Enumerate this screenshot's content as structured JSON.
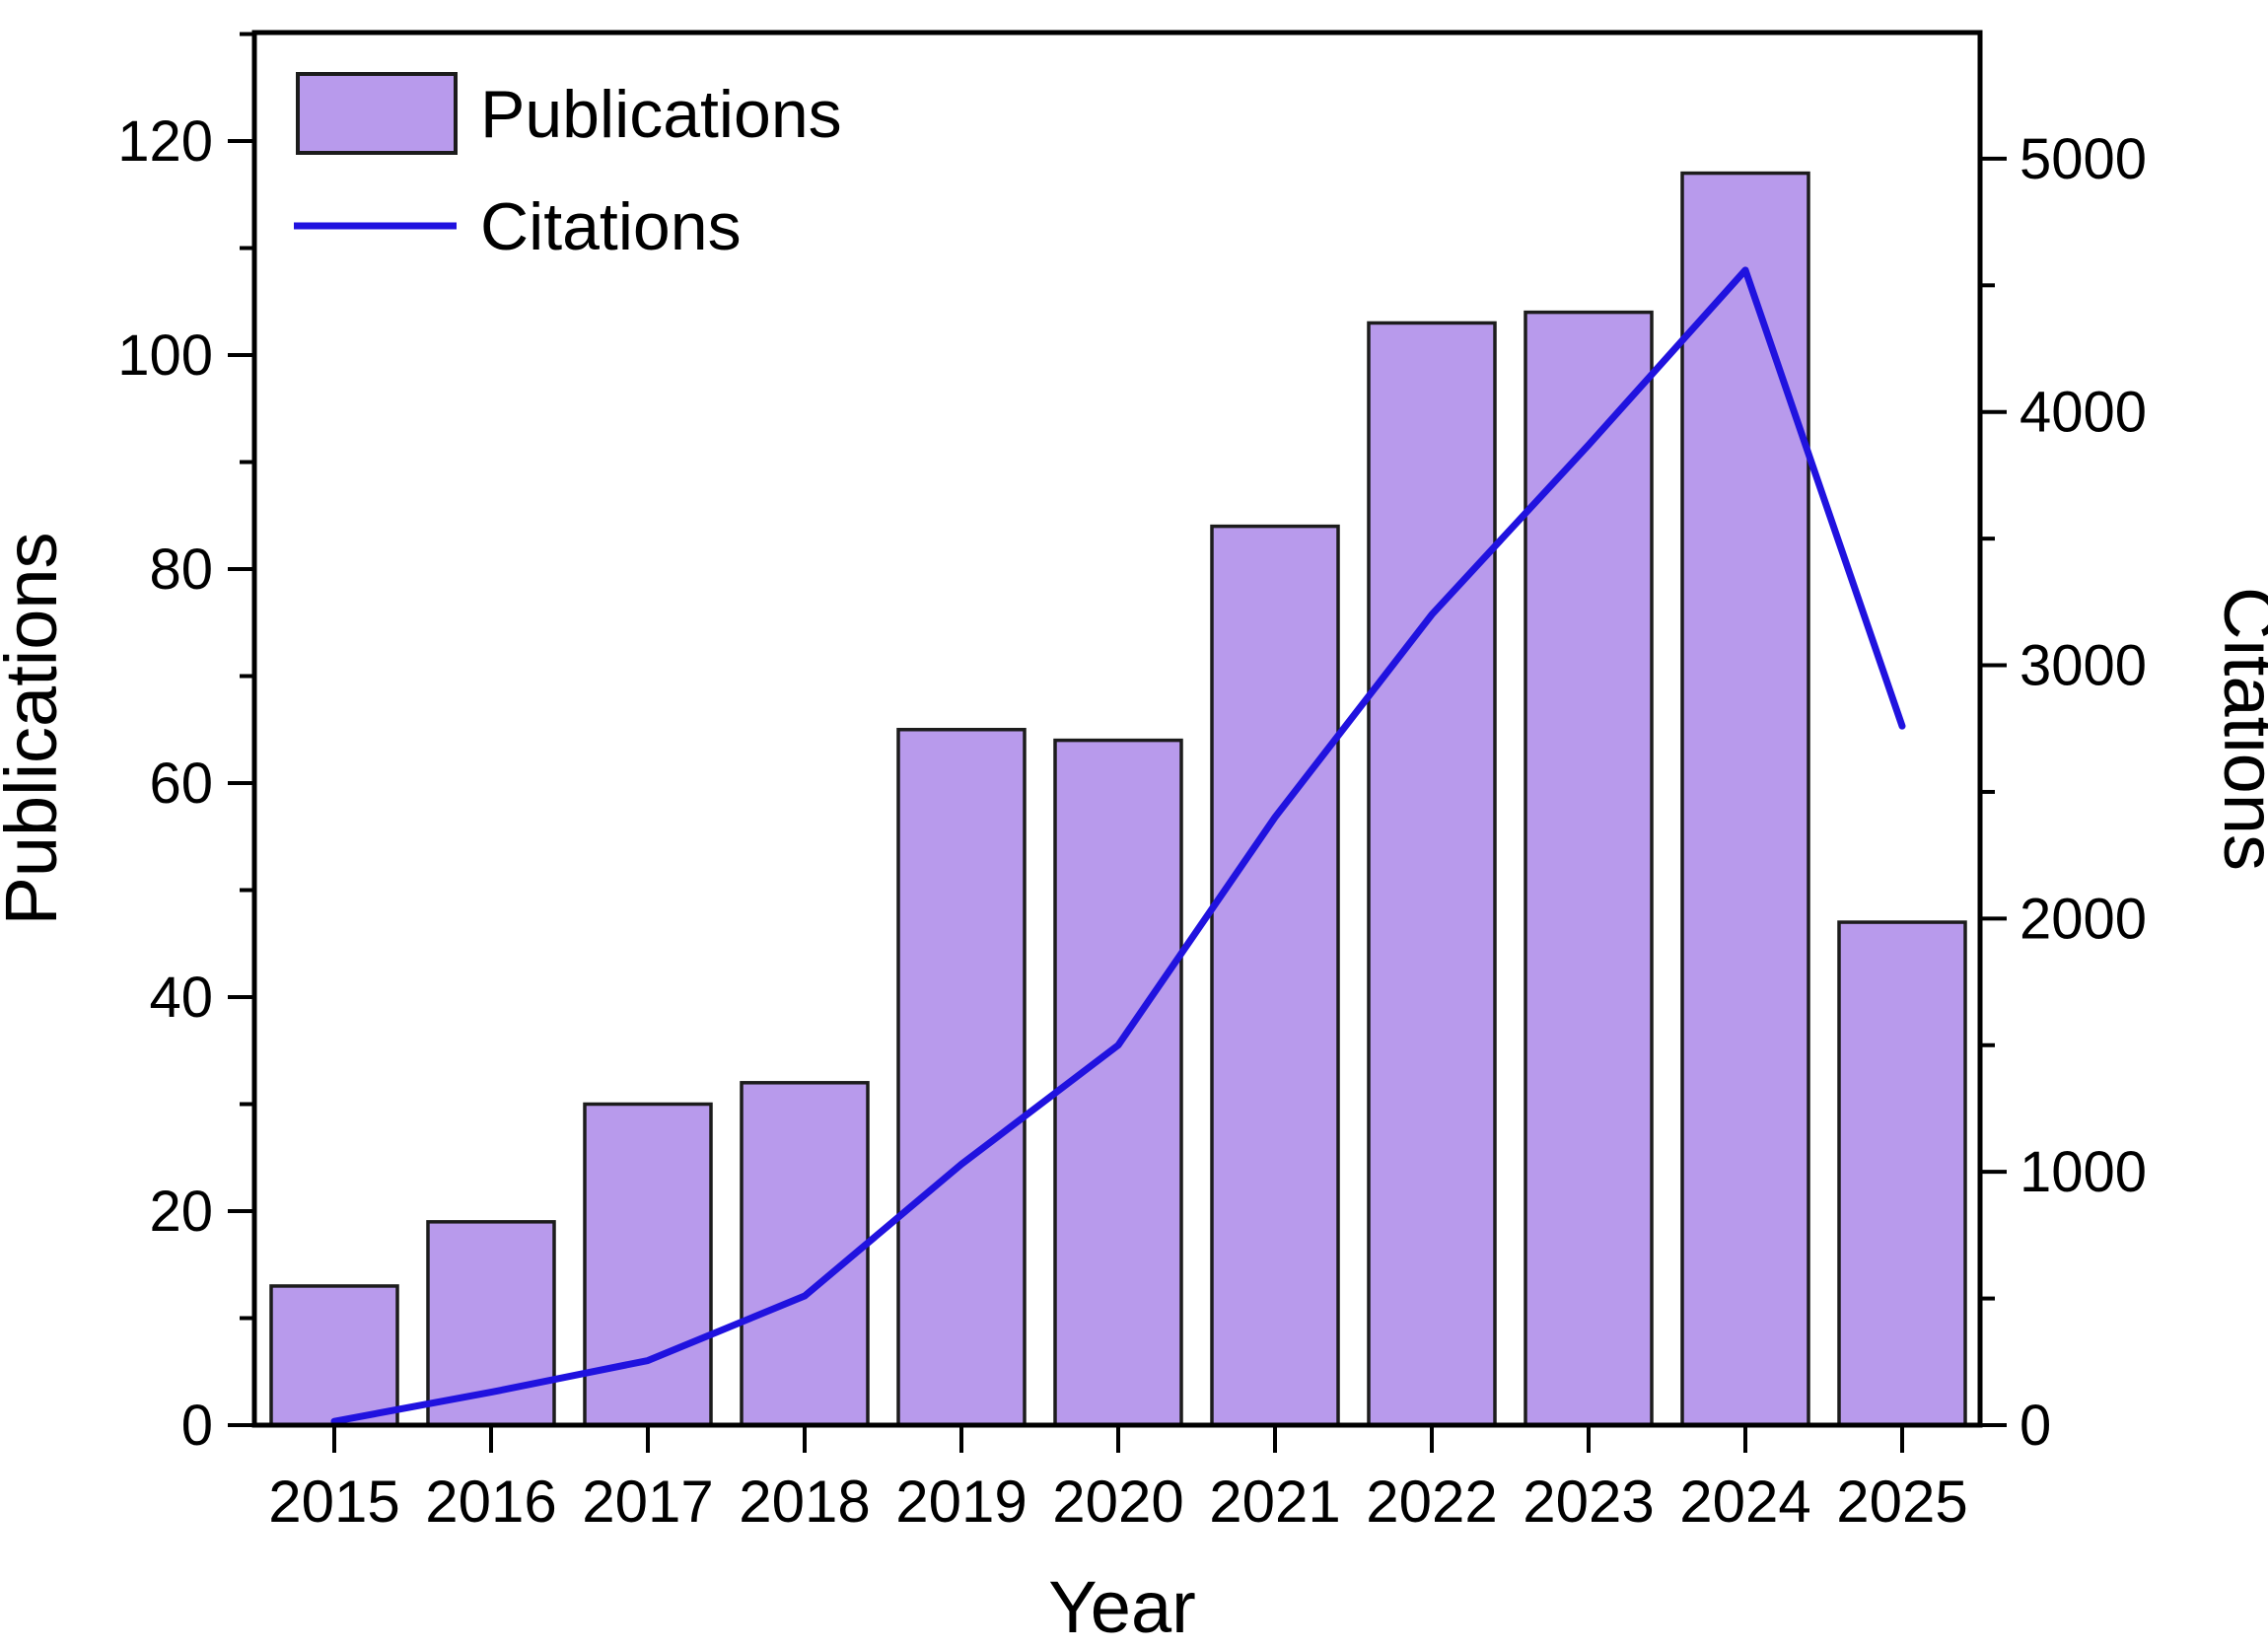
{
  "colors": {
    "bar_fill": "#b89aec",
    "bar_border": "#1c1c1c",
    "line": "#2012df",
    "axis": "#000000",
    "text": "#000000",
    "background": "#ffffff"
  },
  "legend": {
    "publications_label": "Publications",
    "citations_label": "Citations"
  },
  "chart_data": {
    "type": "bar",
    "title": "",
    "xlabel": "Year",
    "ylabel_left": "Publications",
    "ylabel_right": "Citations",
    "categories": [
      "2015",
      "2016",
      "2017",
      "2018",
      "2019",
      "2020",
      "2021",
      "2022",
      "2023",
      "2024",
      "2025"
    ],
    "series": [
      {
        "name": "Publications",
        "type": "bar",
        "axis": "left",
        "values": [
          13,
          19,
          30,
          32,
          65,
          64,
          84,
          103,
          104,
          117,
          47
        ]
      },
      {
        "name": "Citations",
        "type": "line",
        "axis": "right",
        "values": [
          15,
          130,
          255,
          510,
          1030,
          1500,
          2400,
          3200,
          3870,
          4560,
          2760
        ]
      }
    ],
    "left_axis": {
      "ticks": [
        0,
        20,
        40,
        60,
        80,
        100,
        120
      ],
      "minor_ticks": [
        10,
        30,
        50,
        70,
        90,
        110,
        130
      ],
      "range": [
        0,
        130.14
      ]
    },
    "right_axis": {
      "ticks": [
        0,
        1000,
        2000,
        3000,
        4000,
        5000
      ],
      "minor_ticks": [
        500,
        1500,
        2500,
        3500,
        4500
      ],
      "range": [
        0,
        5498
      ]
    },
    "grid": false,
    "legend_position": "top-left"
  }
}
